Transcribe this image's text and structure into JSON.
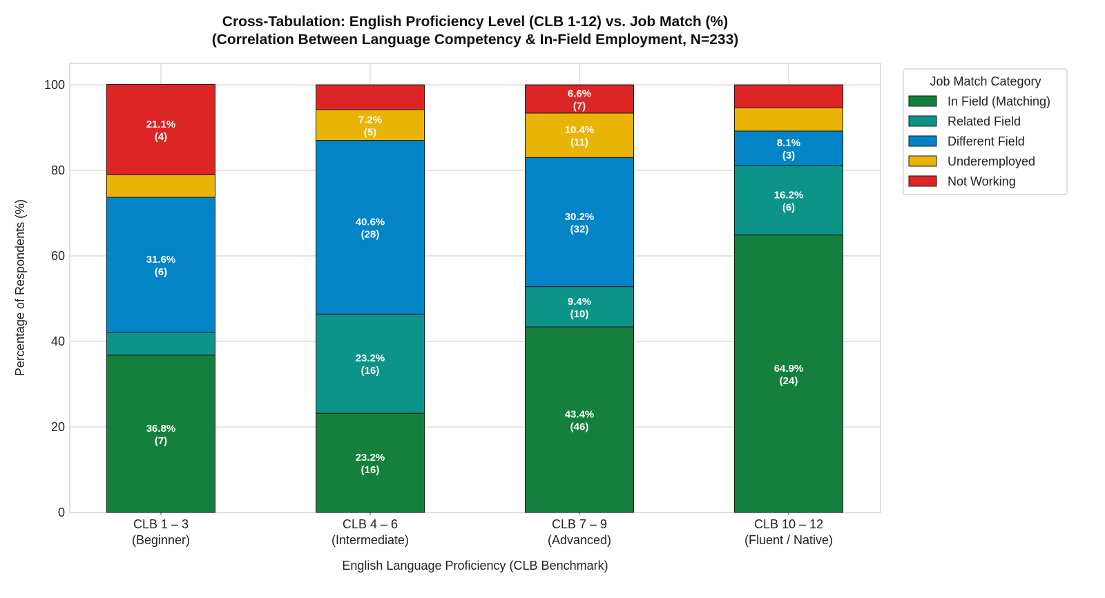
{
  "chart_data": {
    "type": "bar",
    "stacked": true,
    "title": "Cross-Tabulation: English Proficiency Level (CLB 1-12) vs. Job Match (%)",
    "subtitle": "(Correlation Between Language Competency & In-Field Employment, N=233)",
    "xlabel": "English Language Proficiency (CLB Benchmark)",
    "ylabel": "Percentage of Respondents (%)",
    "ylim": [
      0,
      105
    ],
    "yticks": [
      "0",
      "20",
      "40",
      "60",
      "80",
      "100"
    ],
    "grid": true,
    "legend_title": "Job Match Category",
    "legend_position": "outside-top-right",
    "categories": [
      [
        "CLB 1 – 3",
        "(Beginner)"
      ],
      [
        "CLB 4 – 6",
        "(Intermediate)"
      ],
      [
        "CLB 7 – 9",
        "(Advanced)"
      ],
      [
        "CLB 10 – 12",
        "(Fluent / Native)"
      ]
    ],
    "series": [
      {
        "name": "In Field (Matching)",
        "color": "#15803d",
        "values": [
          36.8,
          23.2,
          43.4,
          64.9
        ],
        "labels": [
          [
            "36.8%",
            "(7)"
          ],
          [
            "23.2%",
            "(16)"
          ],
          [
            "43.4%",
            "(46)"
          ],
          [
            "64.9%",
            "(24)"
          ]
        ]
      },
      {
        "name": "Related Field",
        "color": "#0d9488",
        "values": [
          5.3,
          23.2,
          9.4,
          16.2
        ],
        "labels": [
          null,
          [
            "23.2%",
            "(16)"
          ],
          [
            "9.4%",
            "(10)"
          ],
          [
            "16.2%",
            "(6)"
          ]
        ]
      },
      {
        "name": "Different Field",
        "color": "#0284c7",
        "values": [
          31.6,
          40.6,
          30.2,
          8.1
        ],
        "labels": [
          [
            "31.6%",
            "(6)"
          ],
          [
            "40.6%",
            "(28)"
          ],
          [
            "30.2%",
            "(32)"
          ],
          [
            "8.1%",
            "(3)"
          ]
        ]
      },
      {
        "name": "Underemployed",
        "color": "#eab308",
        "values": [
          5.3,
          7.2,
          10.4,
          5.4
        ],
        "labels": [
          null,
          [
            "7.2%",
            "(5)"
          ],
          [
            "10.4%",
            "(11)"
          ],
          null
        ]
      },
      {
        "name": "Not Working",
        "color": "#dc2626",
        "values": [
          21.1,
          5.8,
          6.6,
          5.4
        ],
        "labels": [
          [
            "21.1%",
            "(4)"
          ],
          null,
          [
            "6.6%",
            "(7)"
          ],
          null
        ]
      }
    ]
  }
}
